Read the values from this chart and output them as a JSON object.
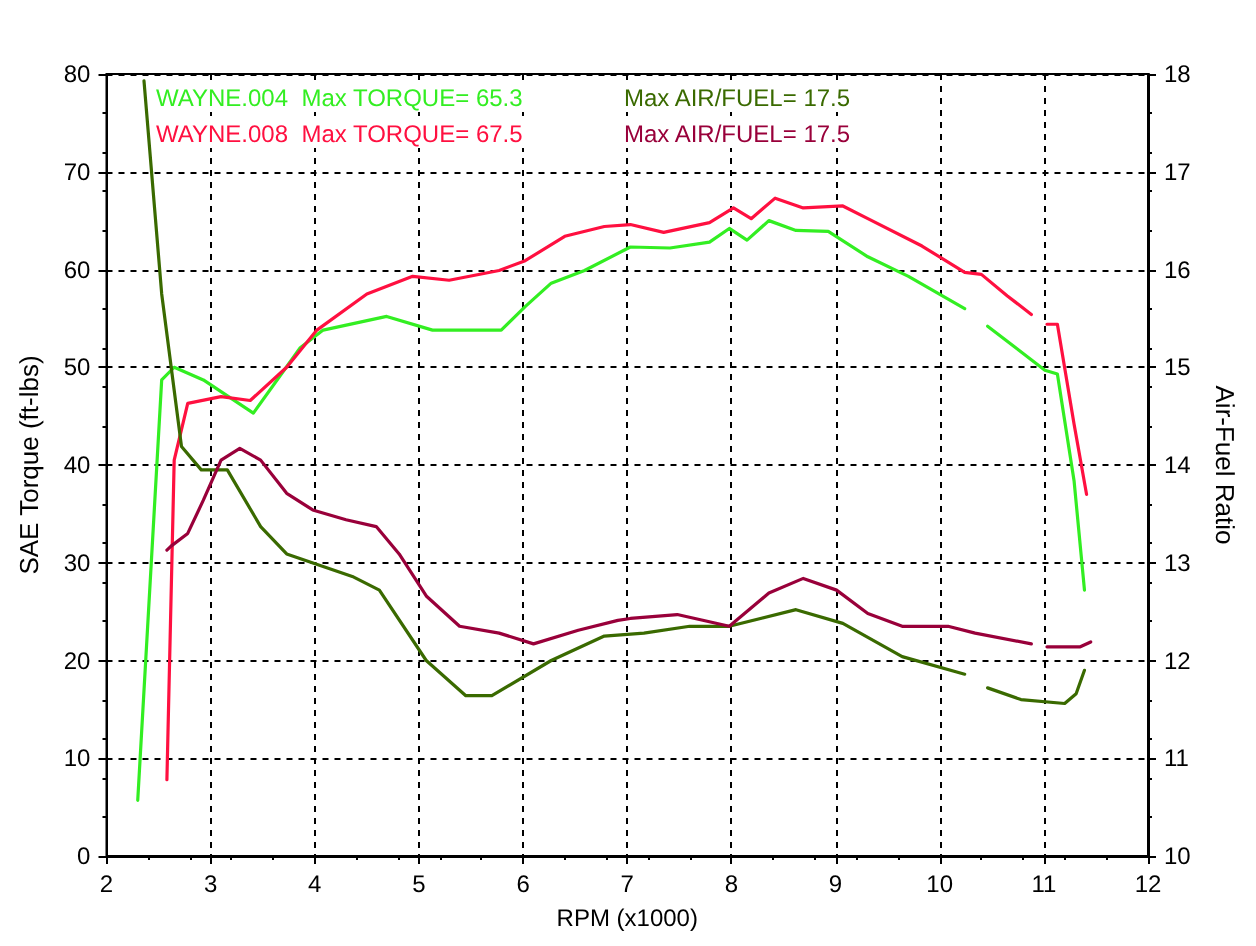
{
  "chart_data": {
    "type": "line",
    "xlabel": "RPM (x1000)",
    "ylabel": "SAE Torque (ft-lbs)",
    "y2label": "Air-Fuel Ratio",
    "xlim": [
      2,
      12
    ],
    "xticks": [
      2,
      3,
      4,
      5,
      6,
      7,
      8,
      9,
      10,
      11,
      12
    ],
    "ylim": [
      0,
      80
    ],
    "yticks": [
      0,
      10,
      20,
      30,
      40,
      50,
      60,
      70,
      80
    ],
    "y2lim": [
      10,
      18
    ],
    "y2ticks": [
      10,
      11,
      12,
      13,
      14,
      15,
      16,
      17,
      18
    ],
    "grid": true,
    "legend": "top left",
    "marker": "none",
    "line_style": "solid",
    "series": [
      {
        "name": "WAYNE.004  Max TORQUE= 65.3",
        "color": "#33ee22",
        "x": [
          2.3,
          2.53,
          2.65,
          2.93,
          3.41,
          3.86,
          4.08,
          4.69,
          5.13,
          5.79,
          6.02,
          6.27,
          6.59,
          7.03,
          7.41,
          7.79,
          7.98,
          8.15,
          8.36,
          8.62,
          8.93,
          9.31,
          9.7,
          10.24,
          10.35,
          10.46,
          11.01,
          11.13,
          11.29,
          11.39
        ],
        "values": [
          5.7,
          48.7,
          50,
          48.7,
          45.3,
          52,
          53.8,
          55.2,
          53.8,
          53.8,
          56.2,
          58.6,
          59.9,
          62.3,
          62.2,
          62.8,
          64.2,
          63,
          65,
          64,
          63.9,
          61.3,
          59.3,
          56,
          null,
          54.2,
          49.7,
          49.3,
          38.4,
          27.2
        ]
      },
      {
        "name": "WAYNE.008  Max TORQUE= 67.5",
        "color": "#ff1040",
        "x": [
          2.58,
          2.65,
          2.78,
          3.1,
          3.38,
          3.73,
          4.02,
          4.5,
          4.94,
          5.29,
          5.77,
          6.02,
          6.4,
          6.78,
          7.03,
          7.35,
          7.79,
          8.02,
          8.19,
          8.42,
          8.69,
          9.07,
          9.31,
          9.83,
          10.24,
          10.4,
          10.65,
          10.88,
          10.95,
          11.03,
          11.13,
          11.29,
          11.41
        ],
        "values": [
          7.8,
          40.5,
          46.3,
          47,
          46.6,
          50,
          53.8,
          57.5,
          59.3,
          58.9,
          59.9,
          60.9,
          63.4,
          64.4,
          64.6,
          63.8,
          64.8,
          66.3,
          65.2,
          67.3,
          66.3,
          66.5,
          65.2,
          62.4,
          59.7,
          59.5,
          57.3,
          55.4,
          null,
          54.4,
          54.4,
          44.2,
          37
        ]
      },
      {
        "name": "Max AIR/FUEL= 17.5",
        "color": "#3a6a00",
        "axis": "y2",
        "x": [
          2.36,
          2.53,
          2.72,
          2.91,
          3.16,
          3.48,
          3.73,
          4.36,
          4.62,
          5.07,
          5.45,
          5.7,
          6.27,
          6.78,
          7.16,
          7.6,
          7.98,
          8.62,
          9.07,
          9.64,
          10.24,
          10.35,
          10.46,
          10.78,
          11.2,
          11.31,
          11.39
        ],
        "values": [
          17.93,
          15.75,
          14.19,
          13.95,
          13.95,
          13.37,
          13.09,
          12.86,
          12.72,
          12.0,
          11.64,
          11.64,
          12.0,
          12.25,
          12.28,
          12.35,
          12.35,
          12.52,
          12.38,
          12.04,
          11.86,
          null,
          11.72,
          11.6,
          11.56,
          11.66,
          11.9
        ]
      },
      {
        "name": "Max AIR/FUEL= 17.5",
        "color": "#99003a",
        "axis": "y2",
        "x": [
          2.58,
          2.62,
          2.78,
          2.93,
          3.1,
          3.28,
          3.48,
          3.73,
          3.98,
          4.3,
          4.59,
          4.81,
          5.07,
          5.39,
          5.77,
          6.1,
          6.53,
          6.91,
          7.03,
          7.48,
          7.98,
          8.36,
          8.69,
          9.01,
          9.31,
          9.64,
          10.08,
          10.34,
          10.88,
          10.95,
          11.03,
          11.35,
          11.45
        ],
        "values": [
          13.13,
          13.17,
          13.3,
          13.64,
          14.05,
          14.17,
          14.05,
          13.71,
          13.54,
          13.44,
          13.37,
          13.09,
          12.66,
          12.35,
          12.28,
          12.17,
          12.31,
          12.41,
          12.43,
          12.47,
          12.35,
          12.69,
          12.84,
          12.72,
          12.48,
          12.35,
          12.35,
          12.28,
          12.17,
          null,
          12.14,
          12.14,
          12.19
        ]
      }
    ]
  }
}
